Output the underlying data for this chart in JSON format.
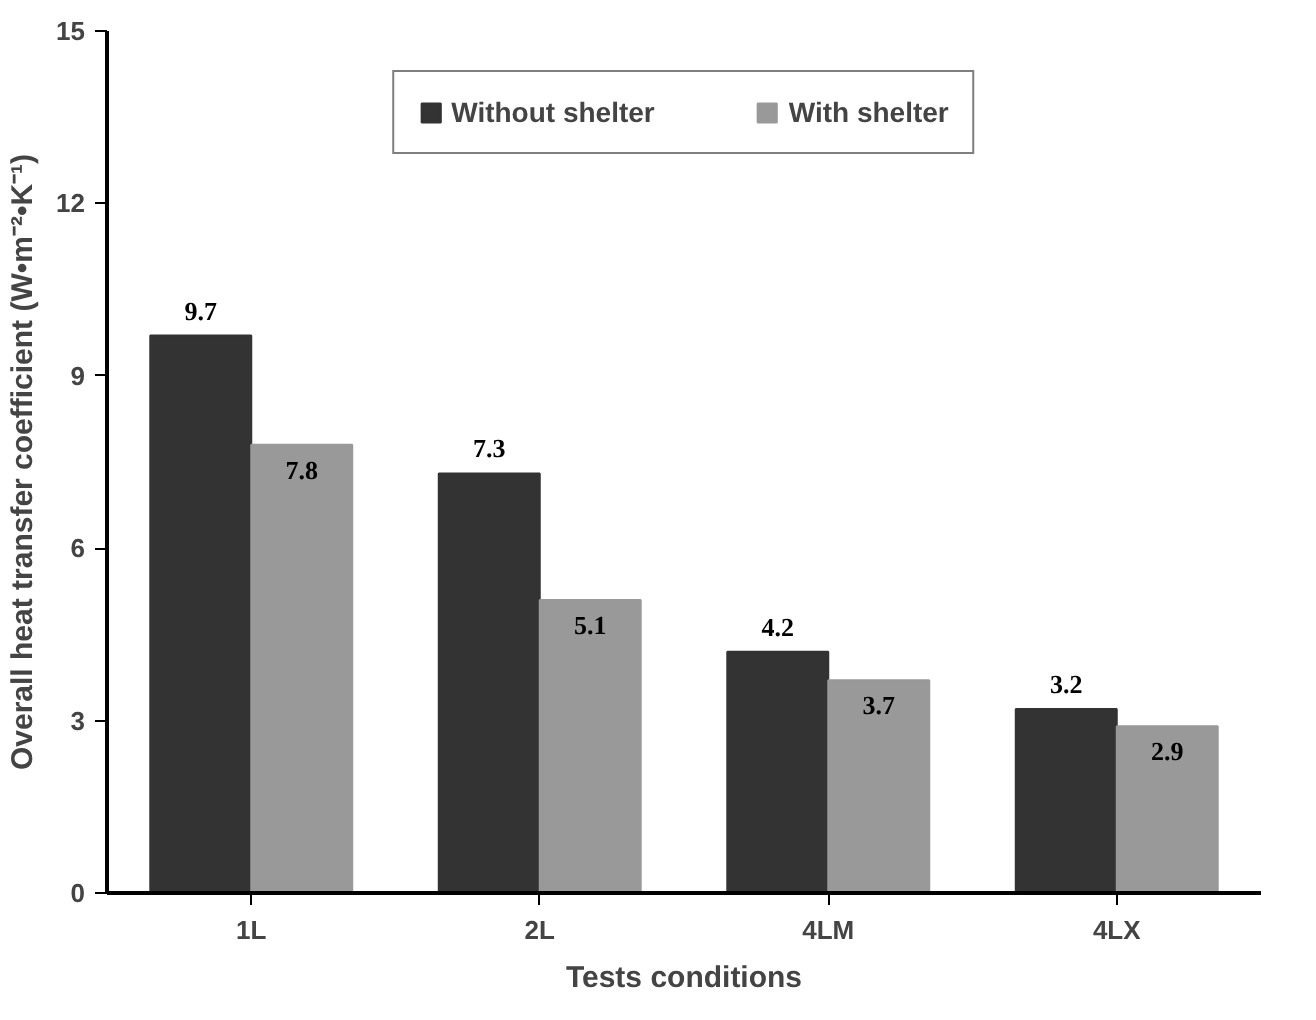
{
  "chart_data": {
    "type": "bar",
    "xlabel": "Tests conditions",
    "ylabel": "Overall heat transfer coefficient (W•m⁻²•K⁻¹)",
    "categories": [
      "1L",
      "2L",
      "4LM",
      "4LX"
    ],
    "series": [
      {
        "name": "Without shelter",
        "color": "#333333",
        "values": [
          9.7,
          7.3,
          4.2,
          3.2
        ]
      },
      {
        "name": "With shelter",
        "color": "#999999",
        "values": [
          7.8,
          5.1,
          3.7,
          2.9
        ]
      }
    ],
    "ylim": [
      0,
      15
    ],
    "yticks": [
      0,
      3,
      6,
      9,
      12,
      15
    ],
    "data_labels": true,
    "legend": "top",
    "grid": false
  }
}
